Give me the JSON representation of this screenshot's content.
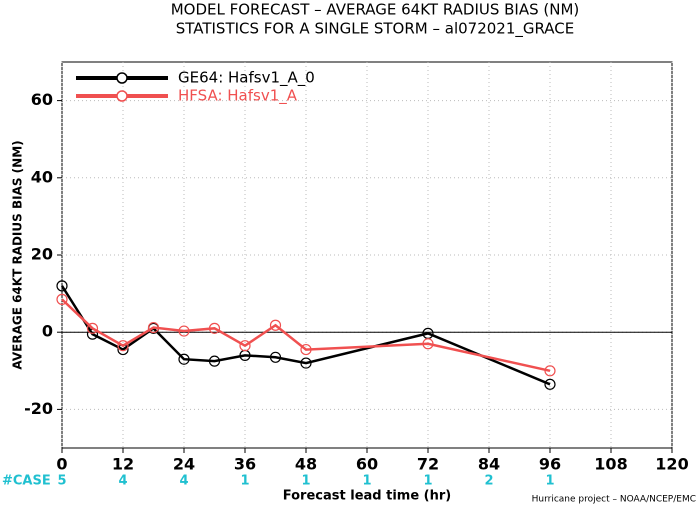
{
  "chart_data": {
    "type": "line",
    "title": "MODEL FORECAST – AVERAGE 64KT RADIUS BIAS (NM)",
    "subtitle": "STATISTICS FOR A SINGLE STORM – al072021_GRACE",
    "ylabel": "AVERAGE 64KT RADIUS BIAS (NM)",
    "xlabel": "Forecast lead time (hr)",
    "x": [
      0,
      6,
      12,
      18,
      24,
      30,
      36,
      42,
      48,
      72,
      96
    ],
    "series": [
      {
        "name": "GE64: Hafsv1_A_0",
        "color": "#000000",
        "values": [
          12,
          -0.5,
          -4.5,
          1,
          -7,
          -7.5,
          -6,
          -6.5,
          -8,
          -0.3,
          -13.5
        ]
      },
      {
        "name": "HFSA: Hafsv1_A",
        "color": "#f05050",
        "values": [
          8.5,
          1,
          -3.5,
          1.2,
          0.3,
          1,
          -3.5,
          1.8,
          -4.5,
          -3,
          -10
        ]
      }
    ],
    "xlim": [
      0,
      120
    ],
    "ylim": [
      -30,
      70
    ],
    "xticks": [
      0,
      12,
      24,
      36,
      48,
      60,
      72,
      84,
      96,
      108,
      120
    ],
    "yticks": [
      -20,
      0,
      20,
      40,
      60
    ],
    "grid": true,
    "hline": 0,
    "legend": "upper left",
    "cases": {
      "label": "#CASE",
      "color": "#20c0d0",
      "x": [
        0,
        12,
        24,
        36,
        48,
        60,
        72,
        84,
        96
      ],
      "values": [
        5,
        4,
        4,
        1,
        1,
        1,
        1,
        2,
        1
      ]
    },
    "footer": "Hurricane project – NOAA/NCEP/EMC"
  }
}
